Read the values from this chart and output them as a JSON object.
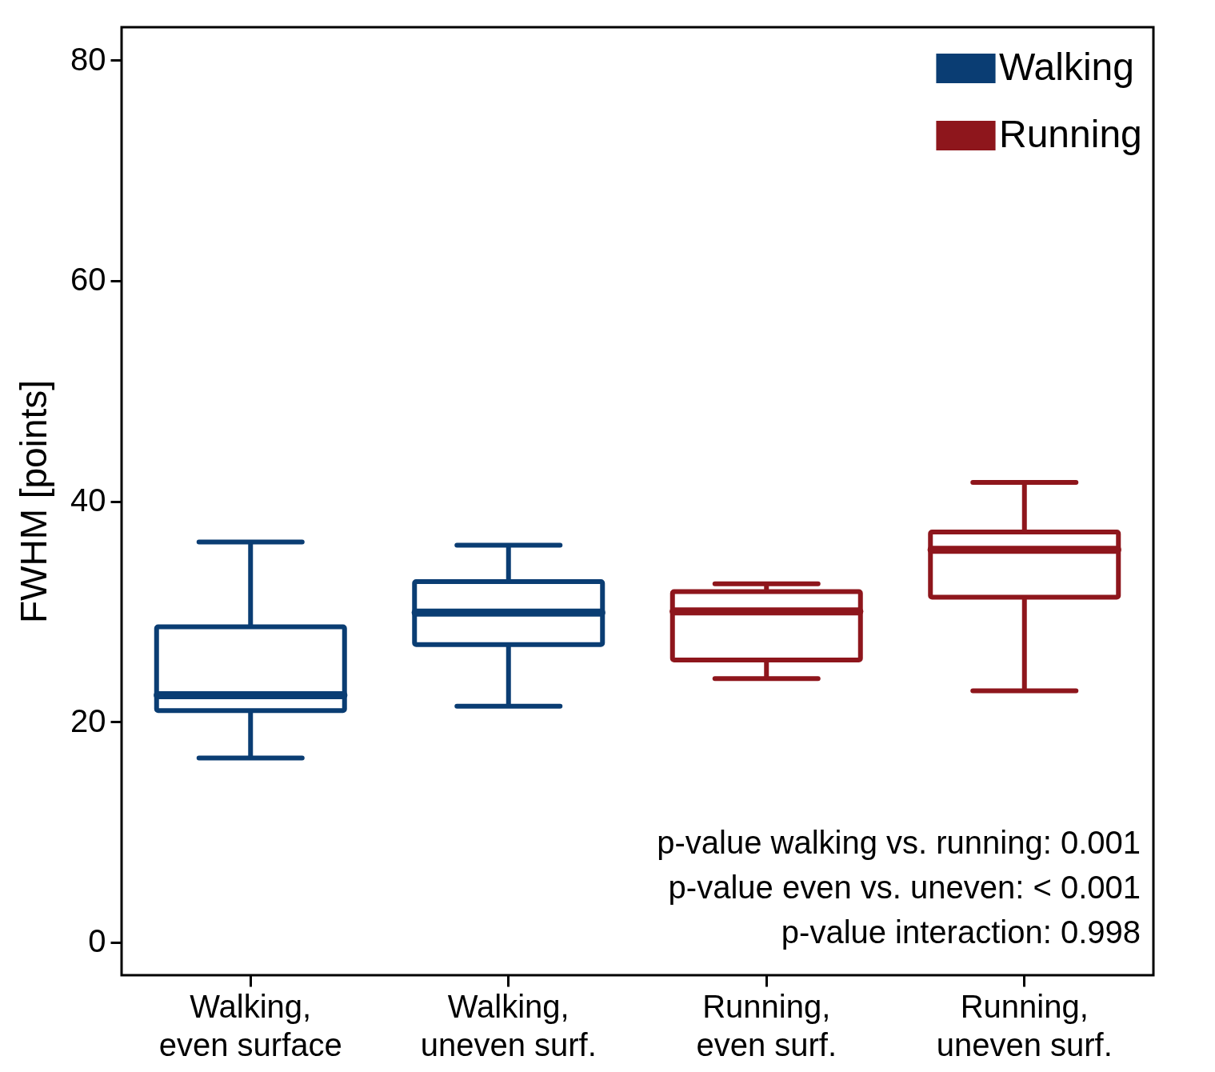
{
  "chart_data": {
    "type": "box",
    "ylabel": "FWHM [points]",
    "categories": [
      "Walking,\neven surface",
      "Walking,\nuneven surf.",
      "Running,\neven surf.",
      "Running,\nuneven surf."
    ],
    "series": [
      {
        "name": "Walking",
        "color": "#0a3d73",
        "boxes": [
          {
            "low": 16.7,
            "q1": 21.0,
            "median": 22.4,
            "q3": 28.6,
            "high": 36.3
          },
          {
            "low": 21.4,
            "q1": 27.0,
            "median": 29.9,
            "q3": 32.7,
            "high": 36.0
          },
          null,
          null
        ]
      },
      {
        "name": "Running",
        "color": "#8e161c",
        "boxes": [
          null,
          null,
          {
            "low": 23.9,
            "q1": 25.6,
            "median": 30.0,
            "q3": 31.8,
            "high": 32.5
          },
          {
            "low": 22.8,
            "q1": 31.3,
            "median": 35.6,
            "q3": 37.2,
            "high": 41.7
          }
        ]
      }
    ],
    "ylim": [
      -3,
      83
    ],
    "yticks": [
      0,
      20,
      40,
      60,
      80
    ],
    "grid": false,
    "legend": "top right",
    "annotations": [
      "p-value walking vs. running: 0.001",
      "p-value even vs. uneven: < 0.001",
      "p-value interaction: 0.998"
    ]
  }
}
